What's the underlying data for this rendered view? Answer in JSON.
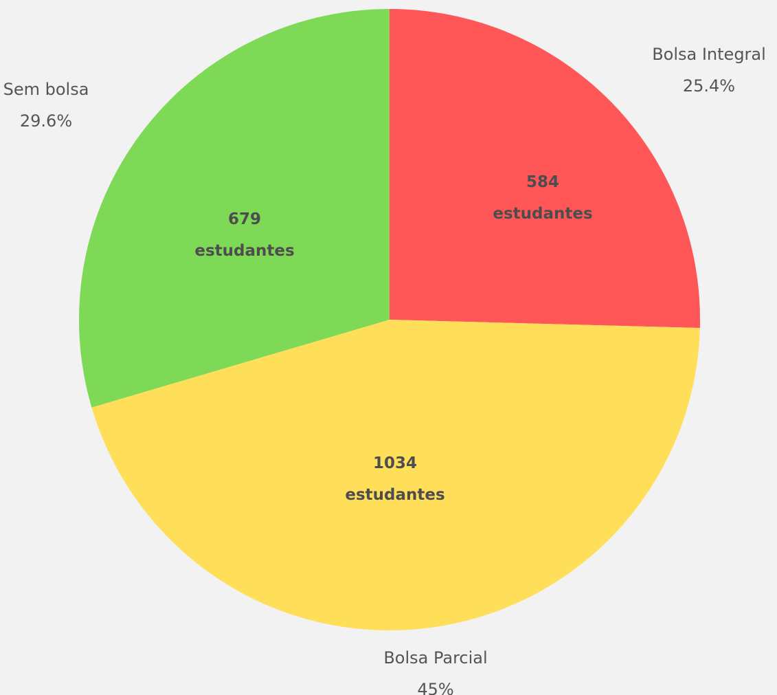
{
  "chart_data": {
    "type": "pie",
    "categories": [
      "Bolsa Integral",
      "Bolsa Parcial",
      "Sem bolsa"
    ],
    "values": [
      584,
      1034,
      679
    ],
    "value_labels": [
      "584 estudantes",
      "1034 estudantes",
      "679 estudantes"
    ],
    "percentages": [
      25.4,
      45,
      29.6
    ],
    "percent_labels": [
      "25.4%",
      "45%",
      "29.6%"
    ],
    "colors": [
      "#ff5757",
      "#ffde59",
      "#7ed957"
    ]
  }
}
